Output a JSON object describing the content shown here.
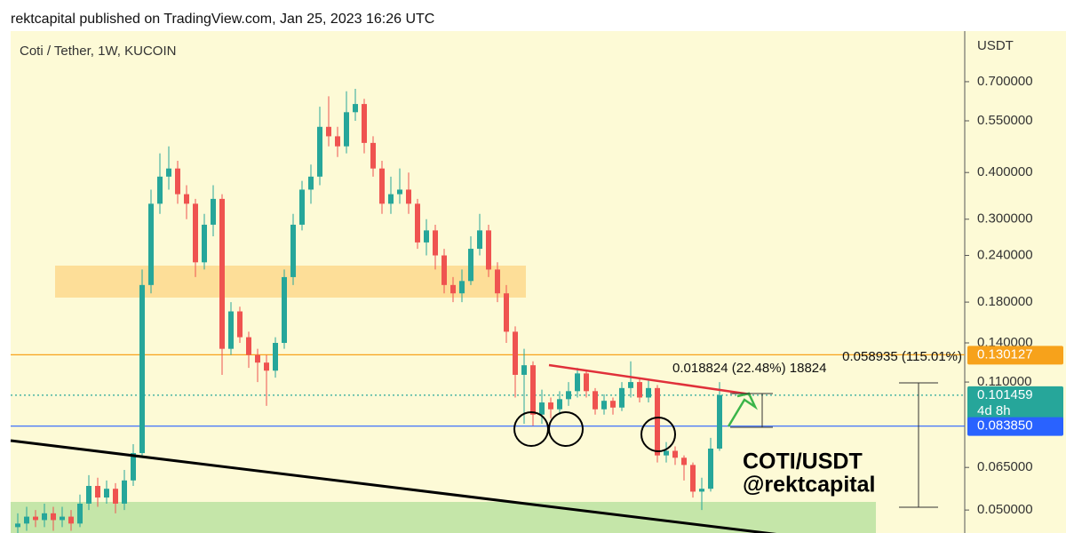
{
  "header": "rektcapital published on TradingView.com, Jan 25, 2023 16:26 UTC",
  "chart_data": {
    "type": "candlestick",
    "title": "Coti / Tether, 1W, KUCOIN",
    "y_axis_label": "USDT",
    "log_scale": true,
    "up_color": "#26a69a",
    "down_color": "#ef5350",
    "ylim": [
      0.0434,
      0.956
    ],
    "yticks": [
      {
        "value": 0.7,
        "label": "0.700000"
      },
      {
        "value": 0.55,
        "label": "0.550000"
      },
      {
        "value": 0.4,
        "label": "0.400000"
      },
      {
        "value": 0.3,
        "label": "0.300000"
      },
      {
        "value": 0.24,
        "label": "0.240000"
      },
      {
        "value": 0.18,
        "label": "0.180000"
      },
      {
        "value": 0.14,
        "label": "0.140000"
      },
      {
        "value": 0.11,
        "label": "0.110000"
      },
      {
        "value": 0.065,
        "label": "0.065000"
      },
      {
        "value": 0.05,
        "label": "0.050000"
      }
    ],
    "open": [
      0.045,
      0.046,
      0.048,
      0.047,
      0.049,
      0.047,
      0.048,
      0.046,
      0.052,
      0.058,
      0.054,
      0.057,
      0.052,
      0.06,
      0.071,
      0.2,
      0.33,
      0.39,
      0.41,
      0.35,
      0.33,
      0.23,
      0.29,
      0.34,
      0.135,
      0.17,
      0.145,
      0.13,
      0.124,
      0.118,
      0.14,
      0.21,
      0.29,
      0.36,
      0.39,
      0.53,
      0.5,
      0.47,
      0.58,
      0.61,
      0.48,
      0.41,
      0.33,
      0.35,
      0.36,
      0.33,
      0.26,
      0.28,
      0.24,
      0.2,
      0.19,
      0.205,
      0.25,
      0.28,
      0.22,
      0.19,
      0.15,
      0.115,
      0.122,
      0.09,
      0.097,
      0.093,
      0.099,
      0.104,
      0.116,
      0.104,
      0.093,
      0.098,
      0.094,
      0.106,
      0.11,
      0.1,
      0.106,
      0.07,
      0.072,
      0.069,
      0.066,
      0.056,
      0.057,
      0.073
    ],
    "high": [
      0.049,
      0.051,
      0.05,
      0.052,
      0.051,
      0.051,
      0.05,
      0.055,
      0.062,
      0.061,
      0.06,
      0.059,
      0.064,
      0.075,
      0.22,
      0.36,
      0.45,
      0.47,
      0.43,
      0.37,
      0.34,
      0.31,
      0.37,
      0.35,
      0.18,
      0.175,
      0.15,
      0.135,
      0.13,
      0.145,
      0.22,
      0.31,
      0.38,
      0.42,
      0.6,
      0.64,
      0.53,
      0.66,
      0.67,
      0.63,
      0.5,
      0.43,
      0.39,
      0.41,
      0.4,
      0.34,
      0.3,
      0.29,
      0.25,
      0.21,
      0.22,
      0.27,
      0.31,
      0.29,
      0.23,
      0.2,
      0.155,
      0.135,
      0.125,
      0.105,
      0.1,
      0.104,
      0.11,
      0.12,
      0.118,
      0.106,
      0.102,
      0.1,
      0.11,
      0.125,
      0.113,
      0.112,
      0.108,
      0.076,
      0.074,
      0.07,
      0.067,
      0.061,
      0.078,
      0.11
    ],
    "low": [
      0.043,
      0.044,
      0.045,
      0.045,
      0.044,
      0.045,
      0.044,
      0.045,
      0.05,
      0.051,
      0.052,
      0.049,
      0.05,
      0.058,
      0.07,
      0.19,
      0.31,
      0.36,
      0.33,
      0.3,
      0.21,
      0.22,
      0.27,
      0.115,
      0.13,
      0.14,
      0.12,
      0.11,
      0.095,
      0.113,
      0.135,
      0.2,
      0.28,
      0.33,
      0.37,
      0.47,
      0.44,
      0.45,
      0.55,
      0.45,
      0.39,
      0.31,
      0.31,
      0.33,
      0.31,
      0.25,
      0.24,
      0.22,
      0.19,
      0.18,
      0.18,
      0.2,
      0.24,
      0.21,
      0.18,
      0.14,
      0.1,
      0.085,
      0.084,
      0.085,
      0.088,
      0.09,
      0.095,
      0.1,
      0.1,
      0.09,
      0.09,
      0.09,
      0.092,
      0.1,
      0.097,
      0.097,
      0.067,
      0.067,
      0.066,
      0.06,
      0.054,
      0.05,
      0.056,
      0.072
    ],
    "close": [
      0.046,
      0.048,
      0.047,
      0.049,
      0.047,
      0.048,
      0.046,
      0.052,
      0.058,
      0.054,
      0.057,
      0.052,
      0.06,
      0.071,
      0.2,
      0.33,
      0.39,
      0.41,
      0.35,
      0.33,
      0.23,
      0.29,
      0.34,
      0.135,
      0.17,
      0.145,
      0.13,
      0.124,
      0.118,
      0.14,
      0.21,
      0.29,
      0.36,
      0.39,
      0.53,
      0.5,
      0.47,
      0.58,
      0.61,
      0.48,
      0.41,
      0.33,
      0.35,
      0.36,
      0.33,
      0.26,
      0.28,
      0.24,
      0.2,
      0.19,
      0.205,
      0.25,
      0.28,
      0.22,
      0.19,
      0.15,
      0.115,
      0.122,
      0.09,
      0.097,
      0.093,
      0.099,
      0.104,
      0.116,
      0.104,
      0.093,
      0.098,
      0.094,
      0.106,
      0.11,
      0.1,
      0.106,
      0.07,
      0.072,
      0.069,
      0.066,
      0.056,
      0.057,
      0.073,
      0.1015
    ],
    "price_lines": [
      {
        "value": 0.130127,
        "color": "#f7a21b"
      },
      {
        "value": 0.101459,
        "color": "#26a69a",
        "countdown": "4d 8h"
      },
      {
        "value": 0.08385,
        "label": "0.083850",
        "color": "#2962ff"
      }
    ],
    "annotations": [
      "0.058935 (115.01%)",
      "0.018824 (22.48%) 18824",
      "COTI/USDT",
      "@rektcapital"
    ]
  }
}
